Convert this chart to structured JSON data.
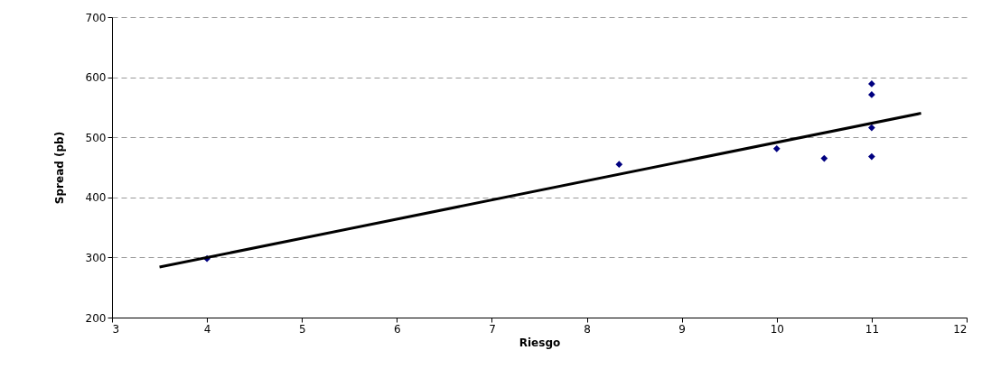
{
  "chart_data": {
    "type": "scatter",
    "xlabel": "Riesgo",
    "ylabel": "Spread (pb)",
    "xlim": [
      3,
      12
    ],
    "xticks": [
      3,
      4,
      5,
      6,
      7,
      8,
      9,
      10,
      11,
      12
    ],
    "ylim": [
      200,
      700
    ],
    "yticks": [
      200,
      300,
      400,
      500,
      600,
      700
    ],
    "grid": "y",
    "series": [
      {
        "marker": "diamond",
        "color": "#000080",
        "x": [
          4,
          8.34,
          10,
          10.5,
          11,
          11,
          11,
          11
        ],
        "values": [
          298,
          455,
          481,
          465,
          589,
          571,
          516,
          468
        ]
      },
      {
        "type": "line",
        "color": "#000000",
        "x": [
          3.5,
          11.52
        ],
        "values": [
          284,
          540
        ]
      }
    ]
  }
}
